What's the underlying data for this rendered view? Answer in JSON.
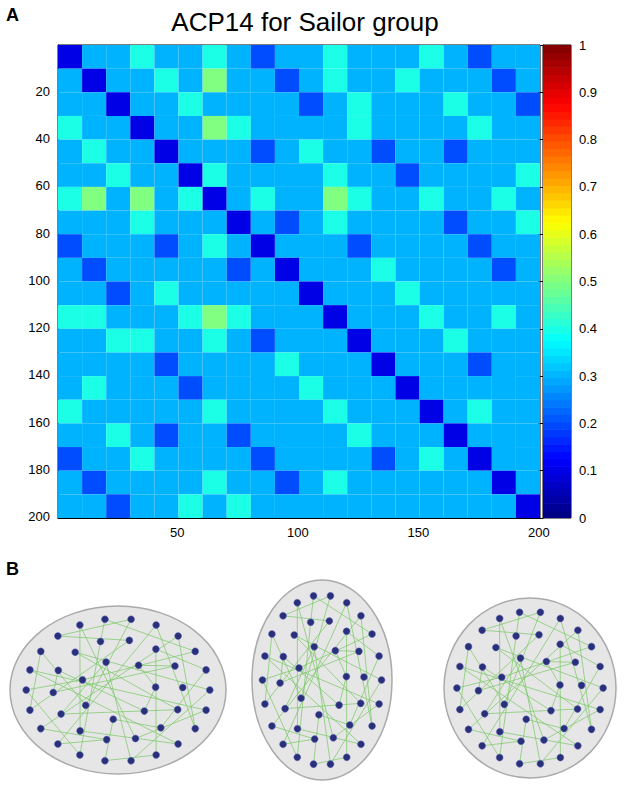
{
  "chart_data": {
    "type": "heatmap",
    "title": "ACP14 for Sailor group",
    "panel_labels": [
      "A",
      "B"
    ],
    "xlim": [
      0.5,
      200.5
    ],
    "xticks": [
      50,
      100,
      150,
      200
    ],
    "ylim": [
      0.5,
      200.5
    ],
    "yticks": [
      20,
      40,
      60,
      80,
      100,
      120,
      140,
      160,
      180,
      200
    ],
    "x_edges": [
      0.5,
      10.5,
      20.5,
      30.5,
      40.5,
      50.5,
      60.5,
      70.5,
      80.5,
      90.5,
      100.5,
      110.5,
      120.5,
      130.5,
      140.5,
      150.5,
      160.5,
      170.5,
      180.5,
      190.5,
      200.5
    ],
    "y_edges": [
      0.5,
      10.5,
      20.5,
      30.5,
      40.5,
      50.5,
      60.5,
      70.5,
      80.5,
      90.5,
      100.5,
      110.5,
      120.5,
      130.5,
      140.5,
      150.5,
      160.5,
      170.5,
      180.5,
      190.5,
      200.5
    ],
    "cells": [
      [
        0.1,
        0.3,
        0.3,
        0.4,
        0.3,
        0.3,
        0.4,
        0.3,
        0.2,
        0.3,
        0.3,
        0.4,
        0.3,
        0.3,
        0.3,
        0.4,
        0.3,
        0.2,
        0.3,
        0.3
      ],
      [
        0.3,
        0.1,
        0.3,
        0.3,
        0.4,
        0.3,
        0.5,
        0.3,
        0.3,
        0.2,
        0.3,
        0.4,
        0.3,
        0.3,
        0.4,
        0.3,
        0.3,
        0.3,
        0.2,
        0.3
      ],
      [
        0.3,
        0.3,
        0.1,
        0.3,
        0.3,
        0.4,
        0.3,
        0.3,
        0.3,
        0.3,
        0.2,
        0.3,
        0.4,
        0.3,
        0.3,
        0.3,
        0.4,
        0.3,
        0.3,
        0.2
      ],
      [
        0.4,
        0.3,
        0.3,
        0.1,
        0.3,
        0.3,
        0.5,
        0.4,
        0.3,
        0.3,
        0.3,
        0.3,
        0.4,
        0.3,
        0.3,
        0.3,
        0.3,
        0.4,
        0.3,
        0.3
      ],
      [
        0.3,
        0.4,
        0.3,
        0.3,
        0.1,
        0.3,
        0.3,
        0.3,
        0.2,
        0.3,
        0.4,
        0.3,
        0.3,
        0.2,
        0.3,
        0.3,
        0.2,
        0.3,
        0.3,
        0.3
      ],
      [
        0.3,
        0.3,
        0.4,
        0.3,
        0.3,
        0.1,
        0.4,
        0.3,
        0.3,
        0.3,
        0.3,
        0.4,
        0.3,
        0.3,
        0.2,
        0.3,
        0.3,
        0.3,
        0.3,
        0.4
      ],
      [
        0.4,
        0.5,
        0.3,
        0.5,
        0.3,
        0.4,
        0.1,
        0.3,
        0.4,
        0.3,
        0.3,
        0.5,
        0.4,
        0.3,
        0.3,
        0.4,
        0.3,
        0.3,
        0.4,
        0.3
      ],
      [
        0.3,
        0.3,
        0.3,
        0.4,
        0.3,
        0.3,
        0.3,
        0.1,
        0.3,
        0.2,
        0.3,
        0.4,
        0.3,
        0.3,
        0.3,
        0.3,
        0.2,
        0.3,
        0.3,
        0.4
      ],
      [
        0.2,
        0.3,
        0.3,
        0.3,
        0.2,
        0.3,
        0.4,
        0.3,
        0.1,
        0.3,
        0.3,
        0.3,
        0.2,
        0.3,
        0.3,
        0.3,
        0.3,
        0.2,
        0.3,
        0.3
      ],
      [
        0.3,
        0.2,
        0.3,
        0.3,
        0.3,
        0.3,
        0.3,
        0.2,
        0.3,
        0.1,
        0.3,
        0.3,
        0.3,
        0.4,
        0.3,
        0.3,
        0.3,
        0.3,
        0.2,
        0.3
      ],
      [
        0.3,
        0.3,
        0.2,
        0.3,
        0.4,
        0.3,
        0.3,
        0.3,
        0.3,
        0.3,
        0.1,
        0.3,
        0.3,
        0.3,
        0.4,
        0.3,
        0.3,
        0.3,
        0.3,
        0.3
      ],
      [
        0.4,
        0.4,
        0.3,
        0.3,
        0.3,
        0.4,
        0.5,
        0.4,
        0.3,
        0.3,
        0.3,
        0.1,
        0.3,
        0.3,
        0.3,
        0.4,
        0.3,
        0.3,
        0.4,
        0.3
      ],
      [
        0.3,
        0.3,
        0.4,
        0.4,
        0.3,
        0.3,
        0.4,
        0.3,
        0.2,
        0.3,
        0.3,
        0.3,
        0.1,
        0.3,
        0.3,
        0.3,
        0.4,
        0.3,
        0.3,
        0.3
      ],
      [
        0.3,
        0.3,
        0.3,
        0.3,
        0.2,
        0.3,
        0.3,
        0.3,
        0.3,
        0.4,
        0.3,
        0.3,
        0.3,
        0.1,
        0.3,
        0.3,
        0.3,
        0.2,
        0.3,
        0.3
      ],
      [
        0.3,
        0.4,
        0.3,
        0.3,
        0.3,
        0.2,
        0.3,
        0.3,
        0.3,
        0.3,
        0.4,
        0.3,
        0.3,
        0.3,
        0.1,
        0.3,
        0.3,
        0.3,
        0.3,
        0.3
      ],
      [
        0.4,
        0.3,
        0.3,
        0.3,
        0.3,
        0.3,
        0.4,
        0.3,
        0.3,
        0.3,
        0.3,
        0.4,
        0.3,
        0.3,
        0.3,
        0.1,
        0.3,
        0.4,
        0.3,
        0.3
      ],
      [
        0.3,
        0.3,
        0.4,
        0.3,
        0.2,
        0.3,
        0.3,
        0.2,
        0.3,
        0.3,
        0.3,
        0.3,
        0.4,
        0.3,
        0.3,
        0.3,
        0.1,
        0.3,
        0.3,
        0.3
      ],
      [
        0.2,
        0.3,
        0.3,
        0.4,
        0.3,
        0.3,
        0.3,
        0.3,
        0.2,
        0.3,
        0.3,
        0.3,
        0.3,
        0.2,
        0.3,
        0.4,
        0.3,
        0.1,
        0.3,
        0.3
      ],
      [
        0.3,
        0.2,
        0.3,
        0.3,
        0.3,
        0.3,
        0.4,
        0.3,
        0.3,
        0.2,
        0.3,
        0.4,
        0.3,
        0.3,
        0.3,
        0.3,
        0.3,
        0.3,
        0.1,
        0.3
      ],
      [
        0.3,
        0.3,
        0.2,
        0.3,
        0.3,
        0.4,
        0.3,
        0.4,
        0.3,
        0.3,
        0.3,
        0.3,
        0.3,
        0.3,
        0.3,
        0.3,
        0.3,
        0.3,
        0.3,
        0.1
      ]
    ],
    "colorbar_lim": [
      0,
      1
    ],
    "colorbar_ticks": [
      0,
      0.1,
      0.2,
      0.3,
      0.4,
      0.5,
      0.6,
      0.7,
      0.8,
      0.9,
      1
    ]
  }
}
